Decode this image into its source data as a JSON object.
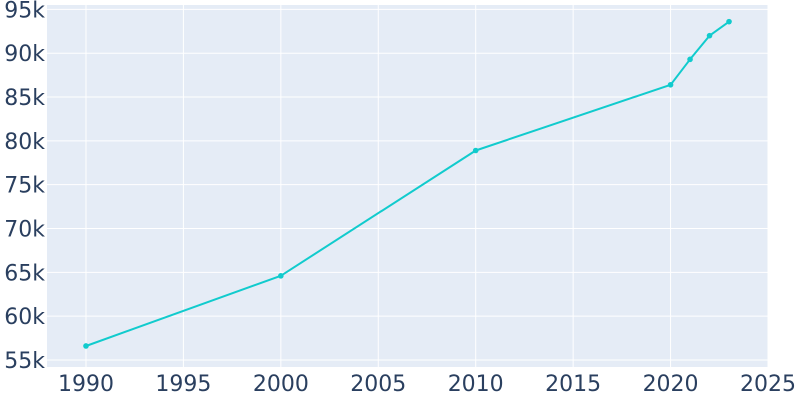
{
  "chart_data": {
    "type": "line",
    "title": "",
    "xlabel": "",
    "ylabel": "",
    "x": [
      1990,
      2000,
      2010,
      2020,
      2021,
      2022,
      2023
    ],
    "series": [
      {
        "values": [
          56600,
          64600,
          78900,
          86400,
          89300,
          92000,
          93600
        ]
      }
    ],
    "xlim": [
      1988,
      2025
    ],
    "ylim": [
      54200,
      95500
    ],
    "x_ticks": [
      1990,
      1995,
      2000,
      2005,
      2010,
      2015,
      2020,
      2025
    ],
    "x_tick_labels": [
      "1990",
      "1995",
      "2000",
      "2005",
      "2010",
      "2015",
      "2020",
      "2025"
    ],
    "y_ticks": [
      55000,
      60000,
      65000,
      70000,
      75000,
      80000,
      85000,
      90000,
      95000
    ],
    "y_tick_labels": [
      "55k",
      "60k",
      "65k",
      "70k",
      "75k",
      "80k",
      "85k",
      "90k",
      "95k"
    ],
    "grid": true,
    "legend": false,
    "colors": {
      "line": "#11cbcd",
      "plot_background": "#e5ecf6",
      "grid": "#ffffff",
      "tick_text": "#2a3f5f"
    }
  }
}
